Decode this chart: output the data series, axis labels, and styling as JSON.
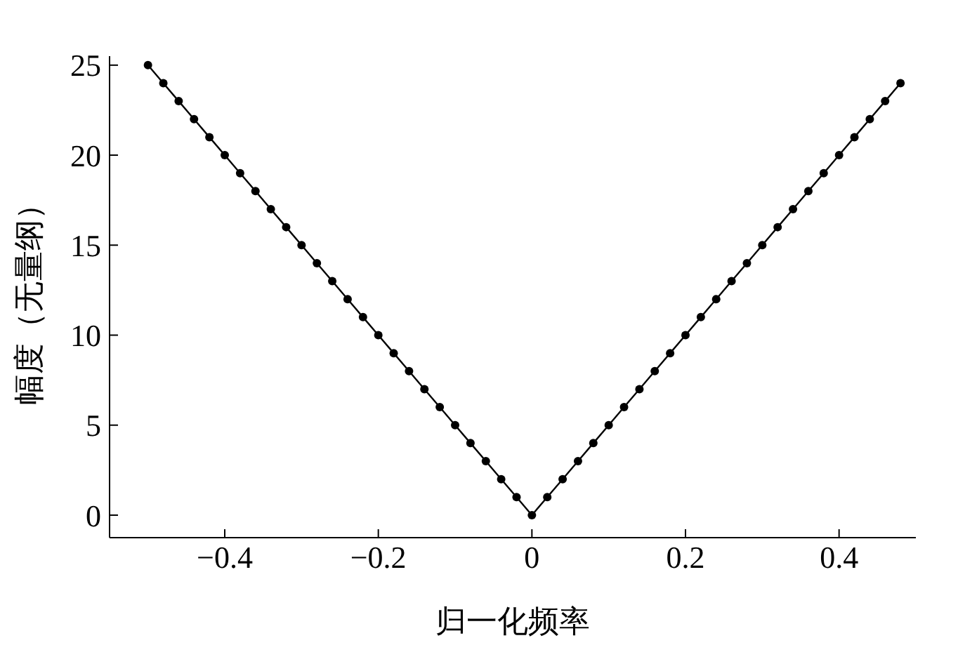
{
  "chart_data": {
    "type": "line",
    "xlabel": "归一化频率",
    "ylabel": "幅度（无量纲）",
    "x": [
      -0.5,
      -0.48,
      -0.46,
      -0.44,
      -0.42,
      -0.4,
      -0.38,
      -0.36,
      -0.34,
      -0.32,
      -0.3,
      -0.28,
      -0.26,
      -0.24,
      -0.22,
      -0.2,
      -0.18,
      -0.16,
      -0.14,
      -0.12,
      -0.1,
      -0.08,
      -0.06,
      -0.04,
      -0.02,
      0,
      0.02,
      0.04,
      0.06,
      0.08,
      0.1,
      0.12,
      0.14,
      0.16,
      0.18,
      0.2,
      0.22,
      0.24,
      0.26,
      0.28,
      0.3,
      0.32,
      0.34,
      0.36,
      0.38,
      0.4,
      0.42,
      0.44,
      0.46,
      0.48
    ],
    "series": [
      {
        "color": "#000000",
        "values": [
          25,
          24,
          23,
          22,
          21,
          20,
          19,
          18,
          17,
          16,
          15,
          14,
          13,
          12,
          11,
          10,
          9,
          8,
          7,
          6,
          5,
          4,
          3,
          2,
          1,
          0,
          1,
          2,
          3,
          4,
          5,
          6,
          7,
          8,
          9,
          10,
          11,
          12,
          13,
          14,
          15,
          16,
          17,
          18,
          19,
          20,
          21,
          22,
          23,
          24
        ]
      }
    ],
    "xlim": [
      -0.55,
      0.5
    ],
    "xticks": [
      -0.4,
      -0.2,
      0,
      0.2,
      0.4
    ],
    "ylim": [
      -1.25,
      25.5
    ],
    "yticks": [
      0,
      5,
      10,
      15,
      20,
      25
    ],
    "grid": false,
    "legend": false,
    "marker": "circle",
    "line_style": "solid"
  }
}
